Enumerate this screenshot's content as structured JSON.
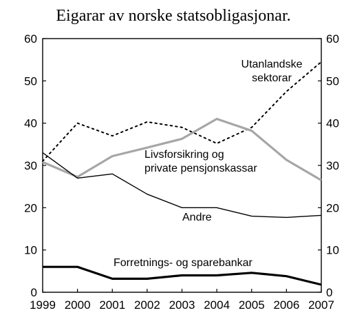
{
  "chart_data": {
    "type": "line",
    "title": "Eigarar av norske statsobligasjonar.",
    "x": [
      "1999",
      "2000",
      "2001",
      "2002",
      "2003",
      "2004",
      "2005",
      "2006",
      "2007"
    ],
    "ylim": [
      0,
      60
    ],
    "yticks": [
      0,
      10,
      20,
      30,
      40,
      50,
      60
    ],
    "grid": false,
    "legend": "none",
    "series": [
      {
        "name": "Utanlandske sektorar",
        "label_lines": [
          "Utanlandske",
          "sektorar"
        ],
        "values": [
          31,
          40,
          37,
          40.3,
          39,
          35.2,
          39,
          47.5,
          54.5
        ],
        "color": "#000000",
        "style": "dotted"
      },
      {
        "name": "Livsforsikring og private pensjonskassar",
        "label_lines": [
          "Livsforsikring og",
          "private pensjonskassar"
        ],
        "values": [
          30.8,
          27.3,
          32.2,
          34.2,
          36.3,
          41,
          38.2,
          31.3,
          26.5
        ],
        "color": "#a6a6a6",
        "style": "solid-thick"
      },
      {
        "name": "Andre",
        "label_lines": [
          "Andre"
        ],
        "values": [
          33,
          27,
          28,
          23.2,
          20,
          20,
          18,
          17.7,
          18.2
        ],
        "color": "#000000",
        "style": "solid"
      },
      {
        "name": "Forretnings- og sparebankar",
        "label_lines": [
          "Forretnings- og sparebankar"
        ],
        "values": [
          6,
          6,
          3.2,
          3.2,
          4,
          4,
          4.6,
          3.8,
          1.8
        ],
        "color": "#000000",
        "style": "solid-bold"
      }
    ]
  }
}
